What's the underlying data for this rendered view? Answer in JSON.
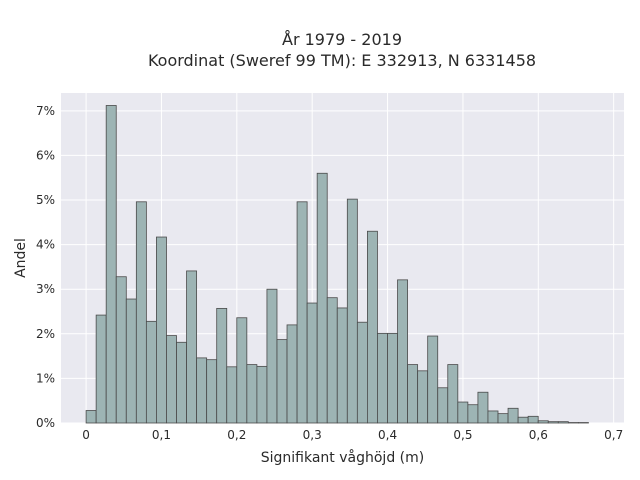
{
  "chart_data": {
    "type": "bar",
    "title_lines": [
      "År 1979 - 2019",
      "Koordinat (Sweref 99 TM): E 332913, N 6331458"
    ],
    "xlabel": "Signifikant våghöjd (m)",
    "ylabel": "Andel",
    "x_ticks": [
      0,
      0.1,
      0.2,
      0.3,
      0.4,
      0.5,
      0.6,
      0.7
    ],
    "x_tick_labels": [
      "0",
      "0,1",
      "0,2",
      "0,3",
      "0,4",
      "0,5",
      "0,6",
      "0,7"
    ],
    "y_ticks": [
      0,
      1,
      2,
      3,
      4,
      5,
      6,
      7
    ],
    "y_tick_labels": [
      "0%",
      "1%",
      "2%",
      "3%",
      "4%",
      "5%",
      "6%",
      "7%"
    ],
    "xlim": [
      -0.0333,
      0.7137
    ],
    "ylim": [
      0,
      7.4
    ],
    "bin_width": 0.01333,
    "bin_start": 0,
    "values": [
      0.28,
      2.42,
      7.12,
      3.28,
      2.78,
      4.96,
      2.28,
      4.17,
      1.96,
      1.81,
      3.41,
      1.46,
      1.42,
      2.57,
      1.26,
      2.36,
      1.31,
      1.27,
      3.0,
      1.87,
      2.2,
      4.96,
      2.69,
      5.6,
      2.81,
      2.58,
      5.02,
      2.26,
      4.3,
      2.01,
      2.01,
      3.21,
      1.31,
      1.17,
      1.95,
      0.79,
      1.31,
      0.47,
      0.41,
      0.69,
      0.27,
      0.21,
      0.33,
      0.13,
      0.15,
      0.05,
      0.03,
      0.03,
      0.01,
      0.01
    ],
    "bar_color": "#9db4b4",
    "bar_edge_color": "#4a4a4a",
    "plot_background": "#e9e9f0",
    "grid": true
  }
}
